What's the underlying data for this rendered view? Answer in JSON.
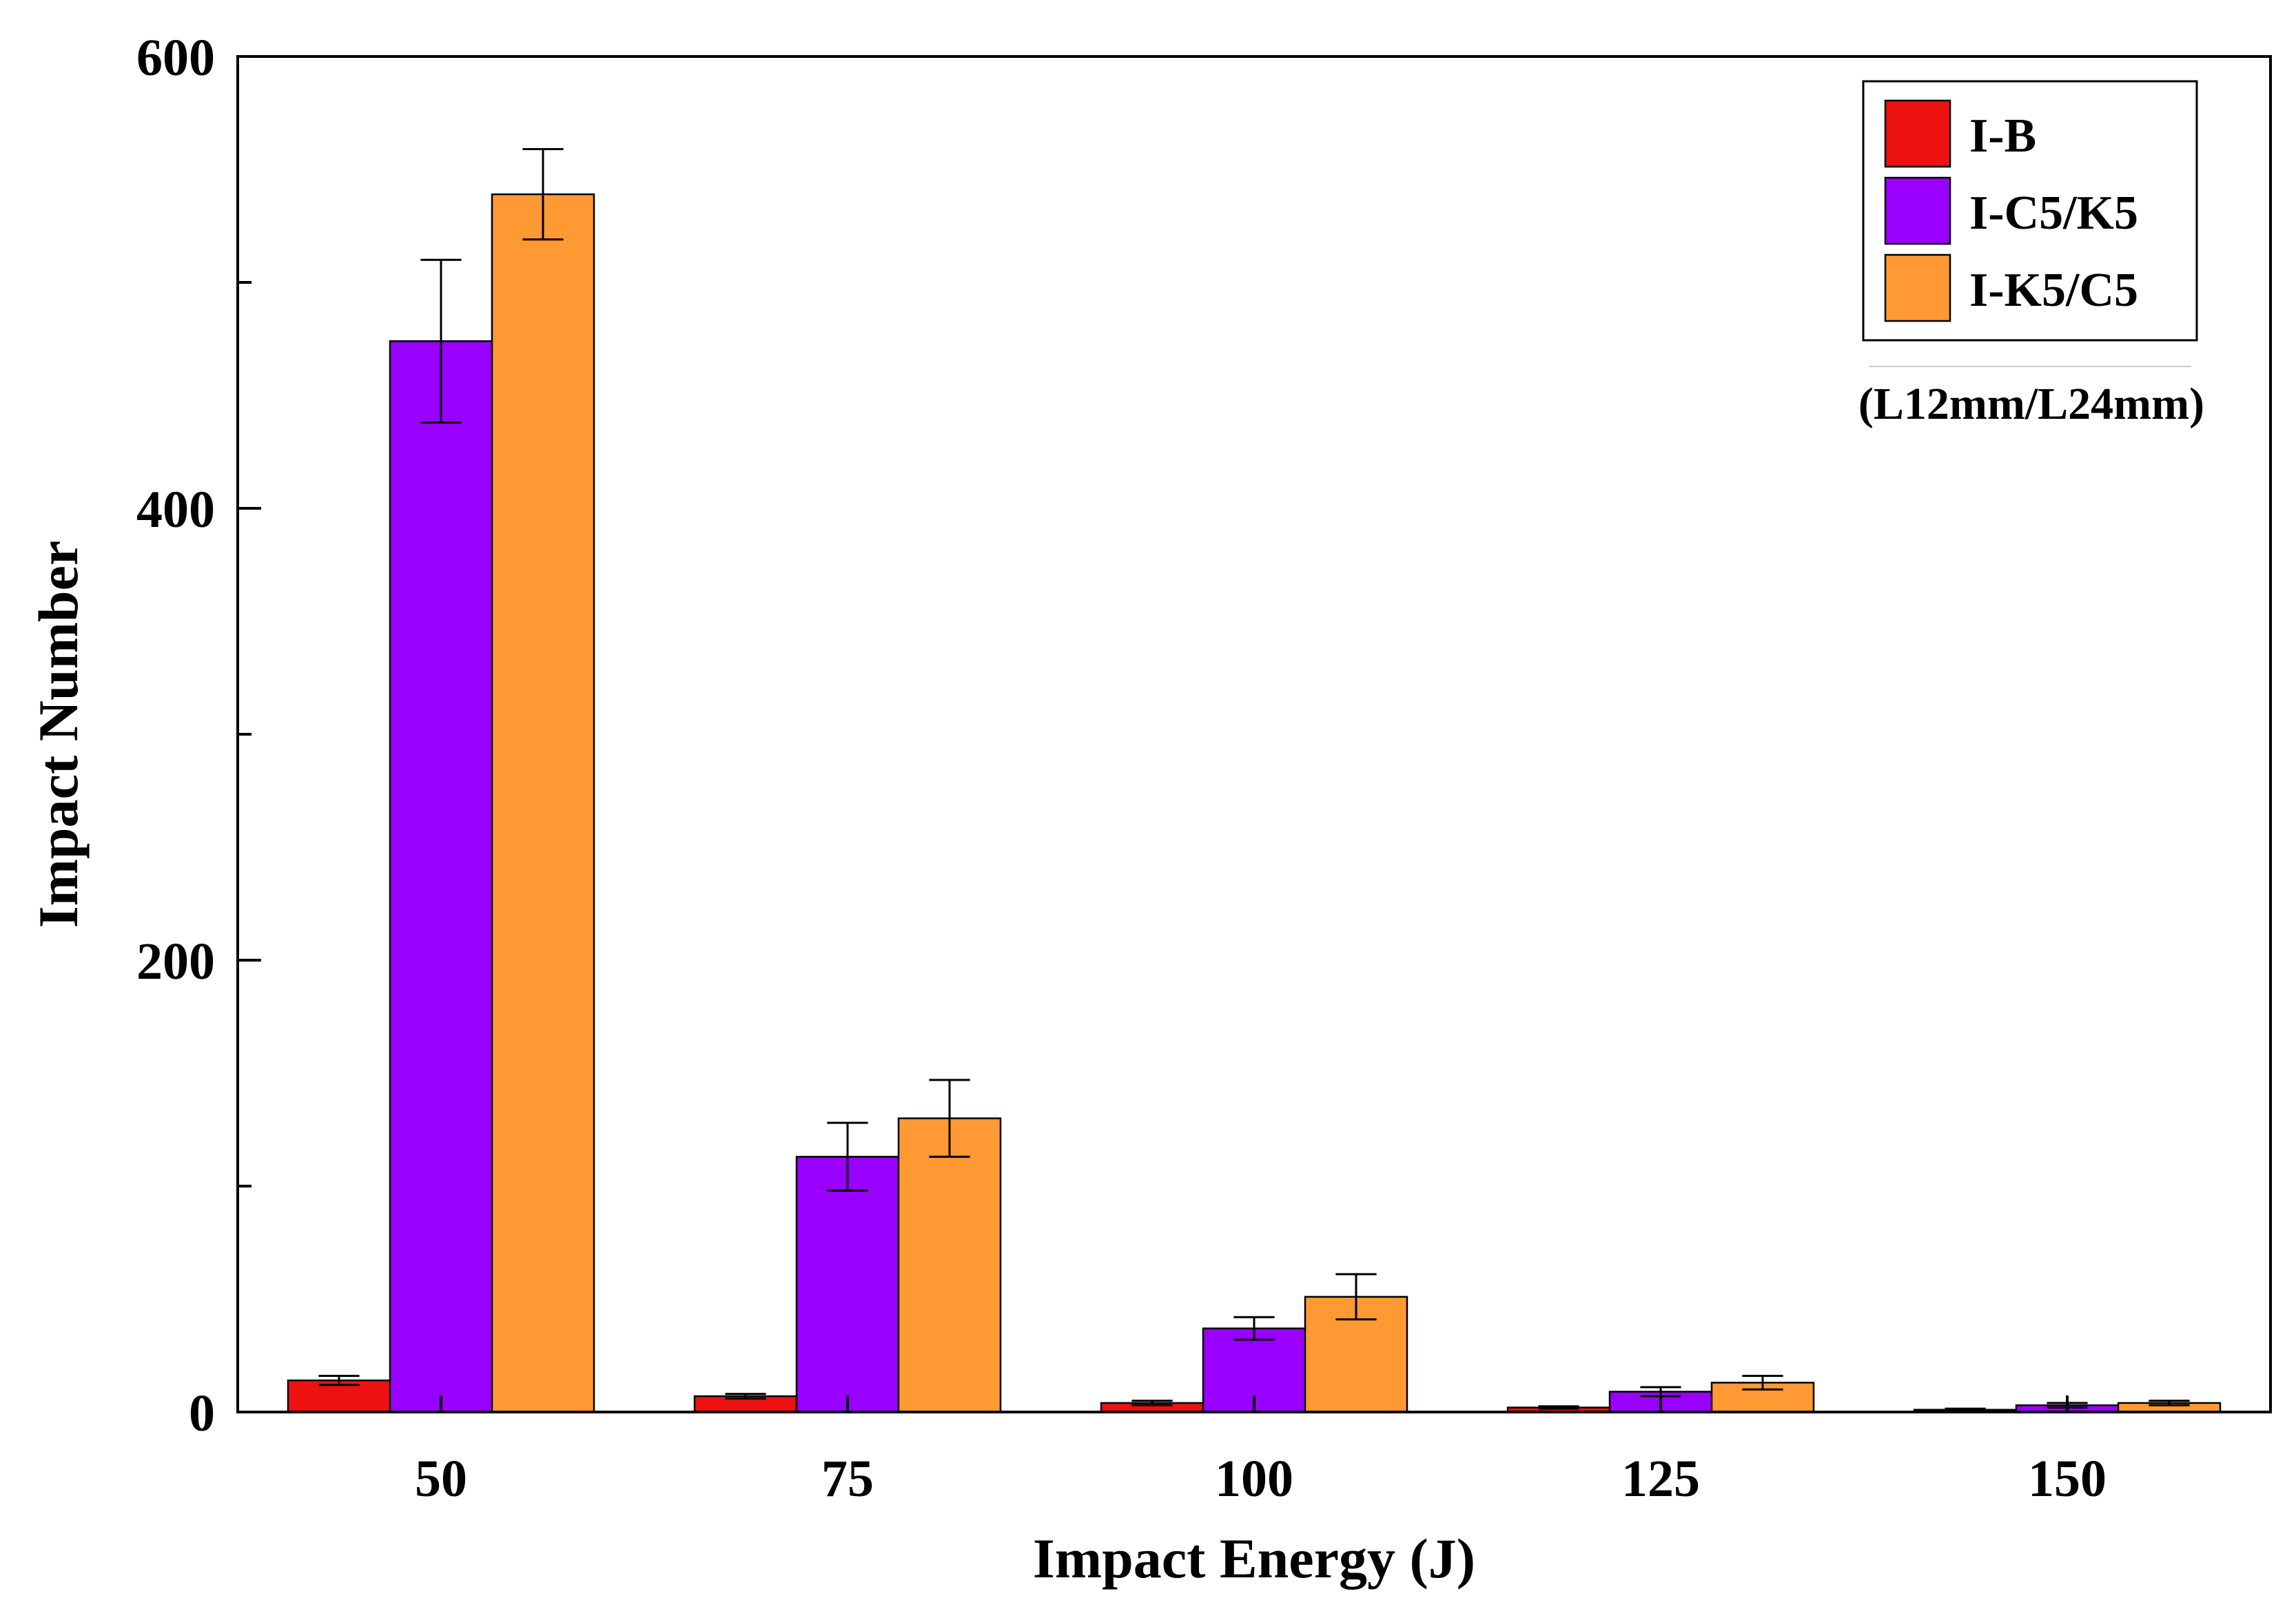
{
  "chart_data": {
    "type": "bar",
    "title": "",
    "xlabel": "Impact Energy (J)",
    "ylabel": "Impact Number",
    "ylim": [
      0,
      600
    ],
    "yticks": [
      0,
      200,
      400,
      600
    ],
    "yminor": [
      100,
      300,
      500
    ],
    "grid": false,
    "categories": [
      "50",
      "75",
      "100",
      "125",
      "150"
    ],
    "series": [
      {
        "name": "I-B",
        "color": "#ee1111",
        "values": [
          14,
          7,
          4,
          2,
          1
        ],
        "errors": [
          2,
          1,
          1,
          0.5,
          0.5
        ]
      },
      {
        "name": "I-C5/K5",
        "color": "#9900ff",
        "values": [
          474,
          113,
          37,
          9,
          3
        ],
        "errors": [
          36,
          15,
          5,
          2,
          1
        ]
      },
      {
        "name": "I-K5/C5",
        "color": "#ff9933",
        "values": [
          539,
          130,
          51,
          13,
          4
        ],
        "errors": [
          20,
          17,
          10,
          3,
          1
        ]
      }
    ],
    "legend_position": "top-right",
    "legend_note": "(L12mm/L24mm)"
  }
}
